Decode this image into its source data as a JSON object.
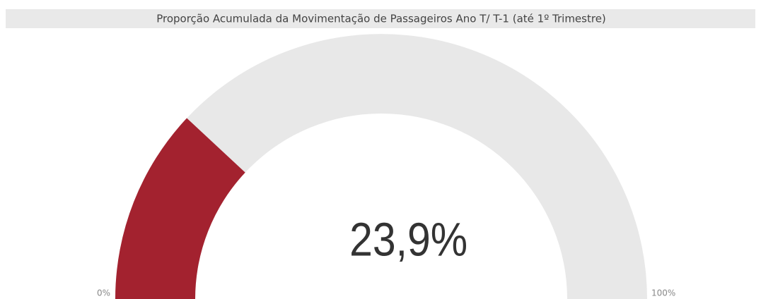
{
  "chart_data": {
    "type": "gauge",
    "title": "Proporção Acumulada da Movimentação de Passageiros Ano T/ T-1 (até 1º Trimestre)",
    "value": 23.9,
    "value_label": "23,9%",
    "range": [
      0,
      100
    ],
    "ticks": [
      {
        "value": 0,
        "label": "0%"
      },
      {
        "value": 100,
        "label": "100%"
      }
    ],
    "color": "#a3222f",
    "track_color": "#e8e8e8"
  }
}
